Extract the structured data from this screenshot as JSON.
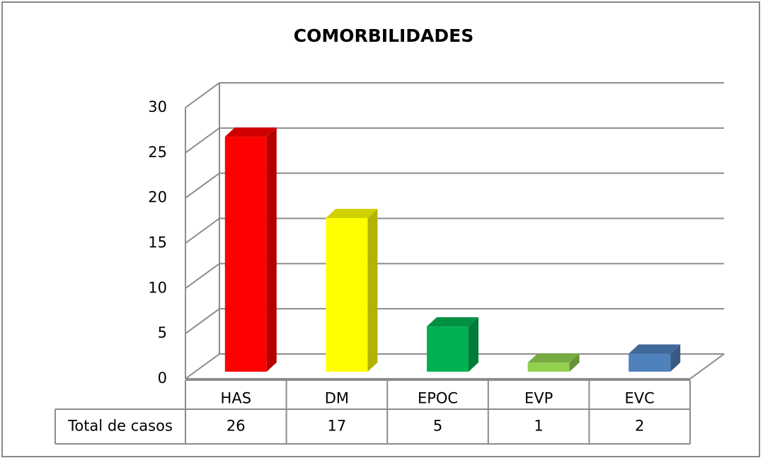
{
  "chart_data": {
    "type": "bar3d",
    "title": "COMORBILIDADES",
    "categories": [
      "HAS",
      "DM",
      "EPOC",
      "EVP",
      "EVC"
    ],
    "series": [
      {
        "name": "Total de casos",
        "values": [
          26,
          17,
          5,
          1,
          2
        ],
        "colors": [
          "#ff0000",
          "#ffff00",
          "#00b050",
          "#92d050",
          "#4f81bd"
        ]
      }
    ],
    "ylim": [
      0,
      30
    ],
    "yticks": [
      0,
      5,
      10,
      15,
      20,
      25,
      30
    ],
    "grid": true,
    "data_table": true
  }
}
